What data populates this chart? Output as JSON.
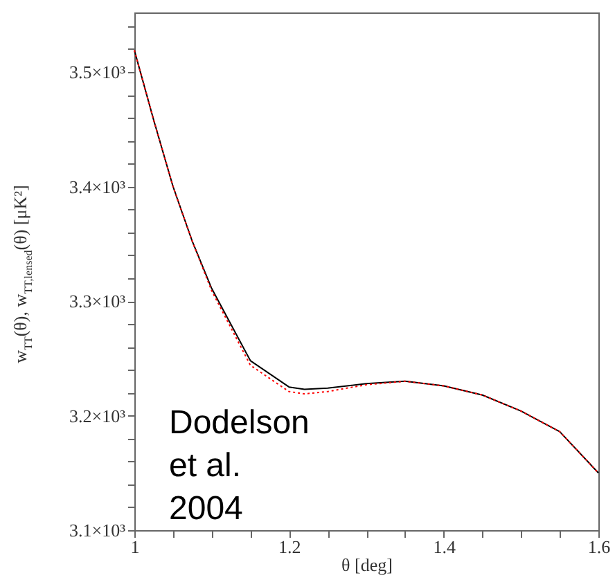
{
  "chart_data": {
    "type": "line",
    "xlabel": "θ [deg]",
    "ylabel": "w$_{TT}$(θ),  w$_{TT,lensed}$(θ)  [μK²]",
    "annotations": [
      "Dodelson et al. 2004"
    ],
    "x": [
      1.0,
      1.025,
      1.05,
      1.075,
      1.1,
      1.15,
      1.2,
      1.22,
      1.25,
      1.3,
      1.35,
      1.4,
      1.45,
      1.5,
      1.55,
      1.6
    ],
    "series": [
      {
        "color": "#000000",
        "line_style": "solid",
        "values": [
          3519,
          3458,
          3400,
          3352,
          3311,
          3248,
          3225,
          3223,
          3224,
          3228,
          3230,
          3226,
          3218,
          3204,
          3186,
          3150
        ]
      },
      {
        "color": "#ff0000",
        "line_style": "dotted",
        "values": [
          3519,
          3458,
          3400,
          3352,
          3309,
          3244,
          3221,
          3219,
          3221,
          3227,
          3230,
          3226,
          3218,
          3204,
          3186,
          3150
        ]
      }
    ],
    "xlim": [
      1,
      1.6
    ],
    "ylim": [
      3100,
      3552
    ],
    "xticks": [
      1,
      {
        "value": 1.05,
        "label": null
      },
      1.2,
      {
        "value": 1.1,
        "label": null
      },
      {
        "value": 1.15,
        "label": null
      },
      {
        "value": 1.25,
        "label": null
      },
      {
        "value": 1.3,
        "label": null
      },
      {
        "value": 1.35,
        "label": null
      },
      1.4,
      {
        "value": 1.45,
        "label": null
      },
      {
        "value": 1.5,
        "label": null
      },
      {
        "value": 1.55,
        "label": null
      },
      1.6
    ],
    "yticks": [
      {
        "value": 3100,
        "label": "3.1×10³"
      },
      {
        "value": 3120,
        "label": null
      },
      {
        "value": 3140,
        "label": null
      },
      {
        "value": 3160,
        "label": null
      },
      {
        "value": 3180,
        "label": null
      },
      {
        "value": 3200,
        "label": "3.2×10³"
      },
      {
        "value": 3220,
        "label": null
      },
      {
        "value": 3240,
        "label": null
      },
      {
        "value": 3260,
        "label": null
      },
      {
        "value": 3280,
        "label": null
      },
      {
        "value": 3300,
        "label": "3.3×10³"
      },
      {
        "value": 3320,
        "label": null
      },
      {
        "value": 3340,
        "label": null
      },
      {
        "value": 3360,
        "label": null
      },
      {
        "value": 3380,
        "label": null
      },
      {
        "value": 3400,
        "label": "3.4×10³"
      },
      {
        "value": 3420,
        "label": null
      },
      {
        "value": 3440,
        "label": null
      },
      {
        "value": 3460,
        "label": null
      },
      {
        "value": 3480,
        "label": null
      },
      {
        "value": 3500,
        "label": "3.5×10³"
      },
      {
        "value": 3520,
        "label": null
      },
      {
        "value": 3540,
        "label": null
      }
    ],
    "grid": false
  }
}
